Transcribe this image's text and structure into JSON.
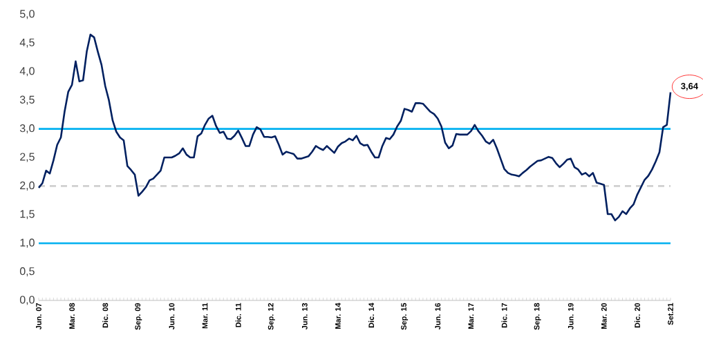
{
  "chart_data": {
    "type": "line",
    "categories": [
      "Jun. 07",
      null,
      null,
      null,
      null,
      null,
      null,
      null,
      null,
      "Mar. 08",
      null,
      null,
      null,
      null,
      null,
      null,
      null,
      null,
      "Dic. 08",
      null,
      null,
      null,
      null,
      null,
      null,
      null,
      null,
      "Sep. 09",
      null,
      null,
      null,
      null,
      null,
      null,
      null,
      null,
      "Jun. 10",
      null,
      null,
      null,
      null,
      null,
      null,
      null,
      null,
      "Mar. 11",
      null,
      null,
      null,
      null,
      null,
      null,
      null,
      null,
      "Dic. 11",
      null,
      null,
      null,
      null,
      null,
      null,
      null,
      null,
      "Sep. 12",
      null,
      null,
      null,
      null,
      null,
      null,
      null,
      null,
      "Jun. 13",
      null,
      null,
      null,
      null,
      null,
      null,
      null,
      null,
      "Mar. 14",
      null,
      null,
      null,
      null,
      null,
      null,
      null,
      null,
      "Dic. 14",
      null,
      null,
      null,
      null,
      null,
      null,
      null,
      null,
      "Sep. 15",
      null,
      null,
      null,
      null,
      null,
      null,
      null,
      null,
      "Jun. 16",
      null,
      null,
      null,
      null,
      null,
      null,
      null,
      null,
      "Mar. 17",
      null,
      null,
      null,
      null,
      null,
      null,
      null,
      null,
      "Dic. 17",
      null,
      null,
      null,
      null,
      null,
      null,
      null,
      null,
      "Sep. 18",
      null,
      null,
      null,
      null,
      null,
      null,
      null,
      null,
      "Jun. 19",
      null,
      null,
      null,
      null,
      null,
      null,
      null,
      null,
      "Mar. 20",
      null,
      null,
      null,
      null,
      null,
      null,
      null,
      null,
      "Dic. 20",
      null,
      null,
      null,
      null,
      null,
      null,
      null,
      null,
      "Set.21"
    ],
    "series": [
      {
        "color": "#002060",
        "values": [
          1.97,
          2.05,
          2.27,
          2.22,
          2.45,
          2.72,
          2.85,
          3.3,
          3.65,
          3.77,
          4.18,
          3.83,
          3.85,
          4.35,
          4.65,
          4.6,
          4.35,
          4.12,
          3.75,
          3.5,
          3.15,
          2.95,
          2.85,
          2.8,
          2.35,
          2.28,
          2.2,
          1.83,
          1.9,
          1.98,
          2.1,
          2.13,
          2.2,
          2.27,
          2.5,
          2.5,
          2.5,
          2.53,
          2.57,
          2.66,
          2.55,
          2.5,
          2.5,
          2.87,
          2.92,
          3.07,
          3.18,
          3.23,
          3.05,
          2.93,
          2.95,
          2.83,
          2.82,
          2.88,
          2.97,
          2.84,
          2.7,
          2.7,
          2.9,
          3.03,
          2.99,
          2.86,
          2.86,
          2.85,
          2.87,
          2.72,
          2.55,
          2.6,
          2.58,
          2.56,
          2.48,
          2.48,
          2.5,
          2.52,
          2.6,
          2.7,
          2.66,
          2.63,
          2.7,
          2.64,
          2.58,
          2.69,
          2.75,
          2.78,
          2.83,
          2.8,
          2.88,
          2.75,
          2.71,
          2.72,
          2.6,
          2.5,
          2.5,
          2.7,
          2.84,
          2.82,
          2.9,
          3.04,
          3.14,
          3.35,
          3.33,
          3.3,
          3.45,
          3.45,
          3.44,
          3.37,
          3.3,
          3.26,
          3.18,
          3.04,
          2.76,
          2.66,
          2.71,
          2.91,
          2.9,
          2.9,
          2.9,
          2.96,
          3.07,
          2.96,
          2.88,
          2.78,
          2.74,
          2.81,
          2.66,
          2.48,
          2.3,
          2.23,
          2.2,
          2.19,
          2.17,
          2.23,
          2.28,
          2.34,
          2.39,
          2.44,
          2.45,
          2.48,
          2.51,
          2.49,
          2.4,
          2.33,
          2.39,
          2.46,
          2.48,
          2.33,
          2.29,
          2.2,
          2.23,
          2.17,
          2.23,
          2.06,
          2.04,
          2.02,
          1.51,
          1.51,
          1.4,
          1.46,
          1.56,
          1.51,
          1.61,
          1.68,
          1.85,
          1.98,
          2.11,
          2.18,
          2.29,
          2.43,
          2.59,
          3.03,
          3.07,
          3.64
        ]
      }
    ],
    "ylim": [
      0,
      5
    ],
    "yticks": [
      {
        "value": 0,
        "label": "0,0"
      },
      {
        "value": 0.5,
        "label": "0,5"
      },
      {
        "value": 1,
        "label": "1,0"
      },
      {
        "value": 1.5,
        "label": "1,5"
      },
      {
        "value": 2,
        "label": "2,0"
      },
      {
        "value": 2.5,
        "label": "2,5"
      },
      {
        "value": 3,
        "label": "3,0"
      },
      {
        "value": 3.5,
        "label": "3,5"
      },
      {
        "value": 4,
        "label": "4,0"
      },
      {
        "value": 4.5,
        "label": "4,5"
      },
      {
        "value": 5,
        "label": "5,0"
      }
    ],
    "ref_lines": [
      {
        "axis": "y",
        "value": 3,
        "color": "#00b0f0",
        "line_style": "solid"
      },
      {
        "axis": "y",
        "value": 1,
        "color": "#00b0f0",
        "line_style": "solid"
      },
      {
        "axis": "y",
        "value": 2,
        "color": "#d0d0d0",
        "line_style": "dashed"
      }
    ],
    "annotations": [
      {
        "text": "3,64",
        "x": "Set.21",
        "y": 3.64
      }
    ],
    "grid": false
  }
}
